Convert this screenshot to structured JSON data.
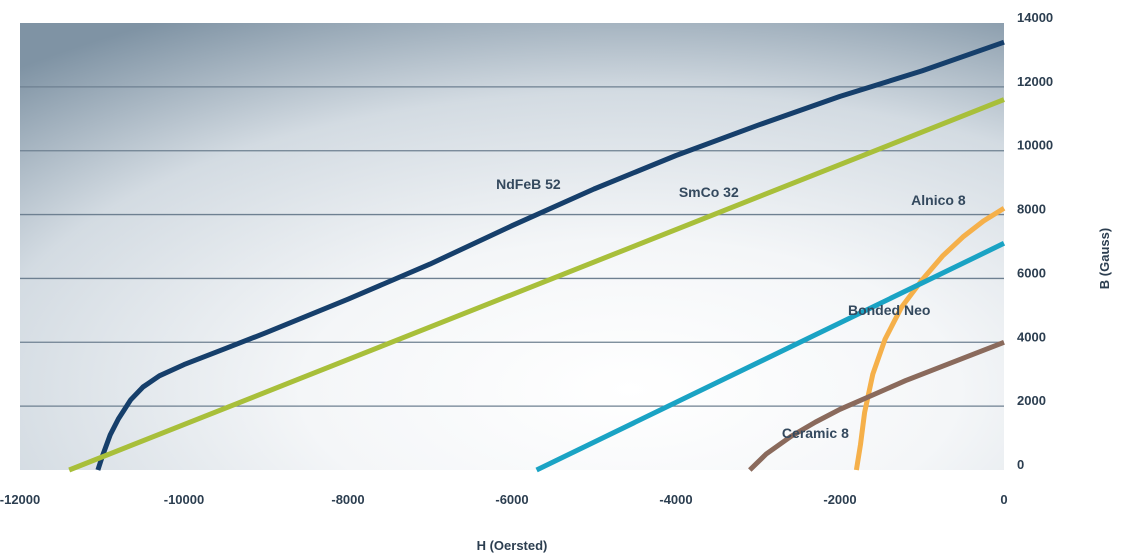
{
  "chart_data": {
    "type": "line",
    "title": "",
    "xlabel": "H (Oersted)",
    "ylabel": "B (Gauss)",
    "xlim": [
      -12000,
      0
    ],
    "ylim": [
      0,
      14000
    ],
    "x_ticks": [
      -12000,
      -10000,
      -8000,
      -6000,
      -4000,
      -2000,
      0
    ],
    "y_ticks": [
      0,
      2000,
      4000,
      6000,
      8000,
      10000,
      12000,
      14000
    ],
    "grid": "horizontal",
    "series": [
      {
        "name": "NdFeB 52",
        "color": "#163f6b",
        "points": [
          [
            -11050,
            0
          ],
          [
            -11000,
            400
          ],
          [
            -10900,
            1100
          ],
          [
            -10800,
            1600
          ],
          [
            -10650,
            2200
          ],
          [
            -10500,
            2600
          ],
          [
            -10300,
            2950
          ],
          [
            -10000,
            3300
          ],
          [
            -9500,
            3800
          ],
          [
            -9000,
            4300
          ],
          [
            -8000,
            5350
          ],
          [
            -7000,
            6450
          ],
          [
            -6000,
            7650
          ],
          [
            -5000,
            8800
          ],
          [
            -4000,
            9850
          ],
          [
            -3000,
            10800
          ],
          [
            -2000,
            11700
          ],
          [
            -1000,
            12500
          ],
          [
            0,
            13400
          ]
        ]
      },
      {
        "name": "SmCo 32",
        "color": "#a8bf3a",
        "points": [
          [
            -11400,
            0
          ],
          [
            0,
            11600
          ]
        ]
      },
      {
        "name": "Alnico 8",
        "color": "#f5b04a",
        "points": [
          [
            -1800,
            0
          ],
          [
            -1750,
            800
          ],
          [
            -1700,
            1800
          ],
          [
            -1600,
            3000
          ],
          [
            -1450,
            4100
          ],
          [
            -1250,
            5100
          ],
          [
            -1000,
            5950
          ],
          [
            -750,
            6700
          ],
          [
            -500,
            7300
          ],
          [
            -250,
            7800
          ],
          [
            0,
            8200
          ]
        ]
      },
      {
        "name": "Bonded Neo",
        "color": "#1aa3c4",
        "points": [
          [
            -5700,
            0
          ],
          [
            0,
            7100
          ]
        ]
      },
      {
        "name": "Ceramic 8",
        "color": "#8a6a5c",
        "points": [
          [
            -3100,
            0
          ],
          [
            -2900,
            500
          ],
          [
            -2600,
            1050
          ],
          [
            -2300,
            1500
          ],
          [
            -2000,
            1900
          ],
          [
            -1600,
            2350
          ],
          [
            -1200,
            2800
          ],
          [
            -800,
            3200
          ],
          [
            -400,
            3600
          ],
          [
            0,
            4000
          ]
        ]
      }
    ],
    "labels": [
      {
        "text": "NdFeB 52",
        "x": -5800,
        "y": 8800
      },
      {
        "text": "SmCo 32",
        "x": -3600,
        "y": 8550
      },
      {
        "text": "Alnico 8",
        "x": -800,
        "y": 8300
      },
      {
        "text": "Bonded Neo",
        "x": -1400,
        "y": 4850
      },
      {
        "text": "Ceramic 8",
        "x": -2300,
        "y": 1000
      }
    ]
  }
}
